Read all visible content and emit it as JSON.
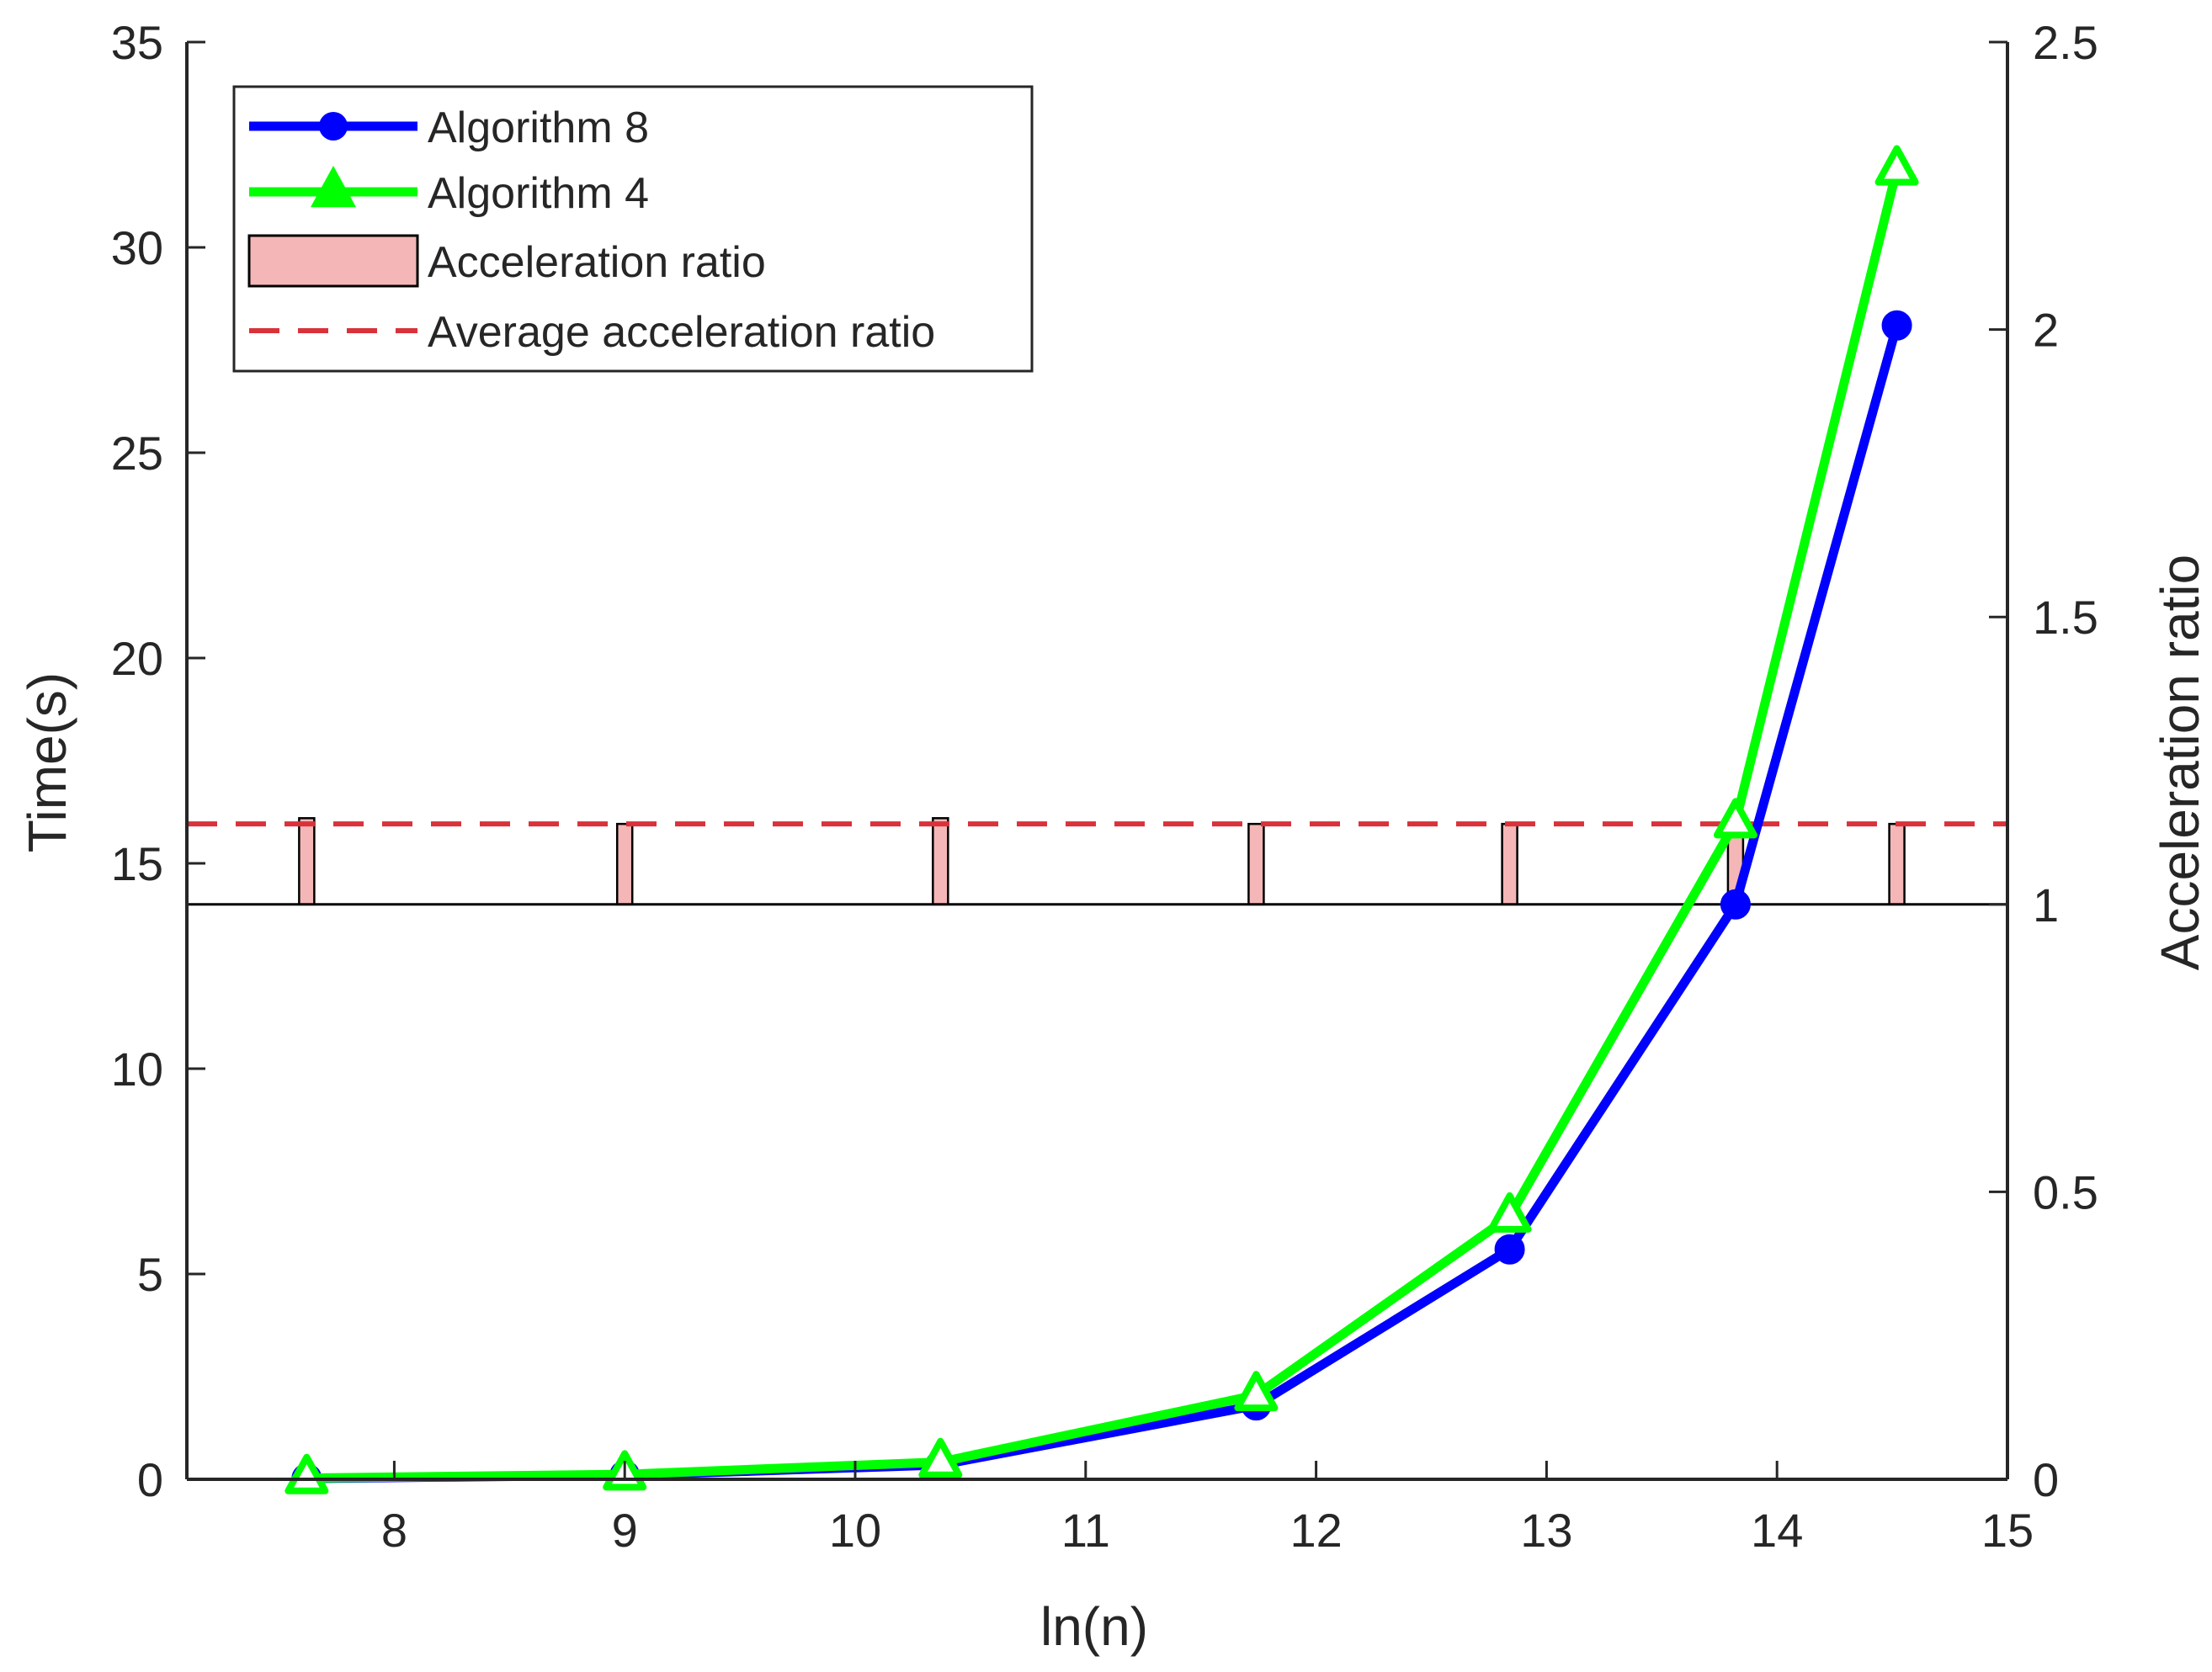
{
  "chart_data": {
    "type": "line",
    "xlabel": "ln(n)",
    "ylabel_left": "Time(s)",
    "ylabel_right": "Acceleration ratio",
    "xlim": [
      7.1,
      15.0
    ],
    "ylim_left": [
      0,
      35
    ],
    "ylim_right": [
      0,
      2.5
    ],
    "x_ticks": [
      8,
      9,
      10,
      11,
      12,
      13,
      14,
      15
    ],
    "y_left_ticks": [
      0,
      5,
      10,
      15,
      20,
      25,
      30,
      35
    ],
    "y_right_ticks": [
      0,
      0.5,
      1,
      1.5,
      2,
      2.5
    ],
    "y_right_tick_labels": [
      "0",
      "0.5",
      "1",
      "1.5",
      "2",
      "2.5"
    ],
    "grid": false,
    "legend_position": "top-left",
    "x": [
      7.62,
      9.0,
      10.37,
      11.74,
      12.84,
      13.82,
      14.52
    ],
    "series": [
      {
        "name": "Algorithm 8",
        "axis": "left",
        "kind": "line",
        "marker": "circle",
        "color": "#0000ff",
        "values": [
          0.02,
          0.1,
          0.35,
          1.8,
          5.6,
          14.0,
          28.1
        ]
      },
      {
        "name": "Algorithm 4",
        "axis": "left",
        "kind": "line",
        "marker": "triangle",
        "color": "#00ff00",
        "values": [
          0.03,
          0.12,
          0.42,
          2.05,
          6.4,
          16.0,
          31.9
        ]
      },
      {
        "name": "Acceleration ratio",
        "axis": "right",
        "kind": "bar",
        "color": "#f4b6b6",
        "edge_color": "#000000",
        "baseline": 1,
        "values": [
          1.15,
          1.14,
          1.15,
          1.14,
          1.14,
          1.13,
          1.14
        ]
      },
      {
        "name": "Average acceleration ratio",
        "axis": "right",
        "kind": "hline",
        "color": "#d9323a",
        "dashed": true,
        "value": 1.14
      }
    ]
  }
}
